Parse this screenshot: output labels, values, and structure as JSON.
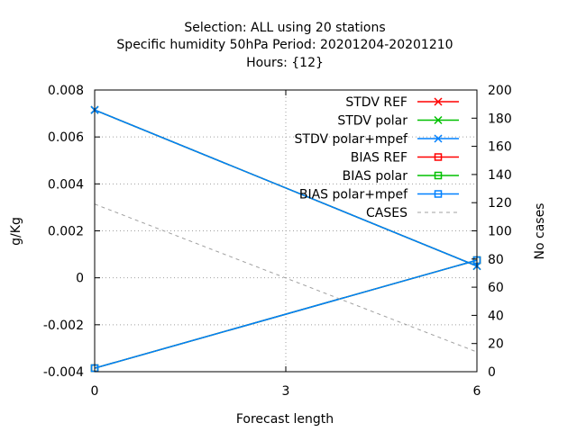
{
  "chart_data": {
    "type": "line",
    "title_lines": [
      "Selection: ALL using    20 stations",
      "Specific humidity 50hPa   Period: 20201204-20201210",
      "Hours: {12}"
    ],
    "xlabel": "Forecast length",
    "ylabel": "g/Kg",
    "y2label": "No cases",
    "x": [
      0,
      6
    ],
    "xlim": [
      0,
      6
    ],
    "ylim": [
      -0.004,
      0.008
    ],
    "y2lim": [
      0,
      200
    ],
    "xticks": [
      0,
      3,
      6
    ],
    "yticks": [
      -0.004,
      -0.002,
      0,
      0.002,
      0.004,
      0.006,
      0.008
    ],
    "ytick_labels": [
      "-0.004",
      "-0.002",
      "0",
      "0.002",
      "0.004",
      "0.006",
      "0.008"
    ],
    "y2ticks": [
      0,
      20,
      40,
      60,
      80,
      100,
      120,
      140,
      160,
      180,
      200
    ],
    "y2tick_labels": [
      "0",
      "20",
      "40",
      "60",
      "80",
      "100",
      "120",
      "140",
      "160",
      "180",
      "200"
    ],
    "grid": true,
    "legend_position": "top-right",
    "series": [
      {
        "name": "STDV REF",
        "values": [
          0.00715,
          0.0005
        ],
        "color": "#ff0000",
        "marker": "x",
        "axis": "y"
      },
      {
        "name": "STDV polar",
        "values": [
          0.00715,
          0.0005
        ],
        "color": "#00c000",
        "marker": "x",
        "axis": "y"
      },
      {
        "name": "STDV polar+mpef",
        "values": [
          0.00715,
          0.0005
        ],
        "color": "#0080ff",
        "marker": "x",
        "axis": "y"
      },
      {
        "name": "BIAS REF",
        "values": [
          -0.00385,
          0.00075
        ],
        "color": "#ff0000",
        "marker": "square",
        "axis": "y"
      },
      {
        "name": "BIAS polar",
        "values": [
          -0.00385,
          0.00075
        ],
        "color": "#00c000",
        "marker": "square",
        "axis": "y"
      },
      {
        "name": "BIAS polar+mpef",
        "values": [
          -0.00385,
          0.00075
        ],
        "color": "#0080ff",
        "marker": "square",
        "axis": "y"
      },
      {
        "name": "CASES",
        "values": [
          119,
          14
        ],
        "color": "#a0a0a0",
        "marker": "none",
        "dash": true,
        "axis": "y2"
      }
    ]
  }
}
